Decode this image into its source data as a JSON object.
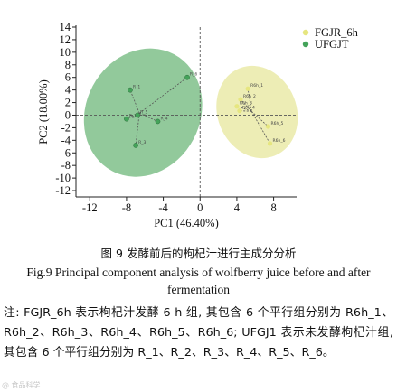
{
  "chart_data": {
    "type": "scatter",
    "xlabel": "PC1 (46.40%)",
    "ylabel": "PC2 (18.00%)",
    "xlim": [
      -13.5,
      10.5
    ],
    "ylim": [
      -13,
      14
    ],
    "xticks": [
      -12,
      -8,
      -4,
      0,
      4,
      8
    ],
    "yticks": [
      14,
      12,
      10,
      8,
      6,
      4,
      2,
      0,
      -2,
      -4,
      -6,
      -8,
      -10,
      -12
    ],
    "series": [
      {
        "name": "FGJR_6h",
        "color": "#e6e680",
        "ellipse_color": "#eaeaa8",
        "centroid": [
          5.6,
          0.6
        ],
        "points": [
          {
            "label": "R6h_1",
            "x": 5.2,
            "y": 4.2
          },
          {
            "label": "R6h_2",
            "x": 4.4,
            "y": 2.5
          },
          {
            "label": "R6h_3",
            "x": 4.0,
            "y": 1.4
          },
          {
            "label": "R6h_4",
            "x": 4.3,
            "y": 0.7
          },
          {
            "label": "R6h_5",
            "x": 7.4,
            "y": -1.8
          },
          {
            "label": "R6h_6",
            "x": 7.6,
            "y": -4.5
          }
        ]
      },
      {
        "name": "UFGJT",
        "color": "#44a35a",
        "ellipse_color": "#7fbf8a",
        "centroid": [
          -6.6,
          0.3
        ],
        "points": [
          {
            "label": "R_1",
            "x": -7.6,
            "y": 4.0
          },
          {
            "label": "R_2",
            "x": -8.0,
            "y": -0.6
          },
          {
            "label": "R_3",
            "x": -7.0,
            "y": -4.8
          },
          {
            "label": "R_4",
            "x": -4.6,
            "y": -1.0
          },
          {
            "label": "R_5",
            "x": -6.8,
            "y": 0.0
          },
          {
            "label": "R_6",
            "x": -1.4,
            "y": 6.0
          }
        ]
      }
    ]
  },
  "caption_cn": "图 9   发酵前后的枸杞汁进行主成分分析",
  "caption_en": "Fig.9   Principal component analysis of wolfberry juice before and after fermentation",
  "note": "注: FGJR_6h 表示枸杞汁发酵 6 h 组, 其包含 6 个平行组分别为 R6h_1、R6h_2、R6h_3、R6h_4、R6h_5、R6h_6; UFGJ1 表示未发酵枸杞汁组, 其包含 6 个平行组分别为 R_1、R_2、R_3、R_4、R_5、R_6。",
  "watermark": "@ 食品科学"
}
